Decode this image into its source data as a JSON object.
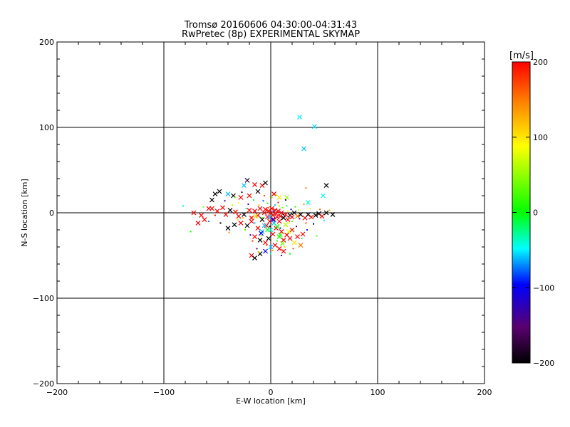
{
  "chart_data": {
    "type": "scatter",
    "title": "Tromsø 20160606 04:30:00-04:31:43",
    "subtitle": "RwPretec (8p) EXPERIMENTAL SKYMAP",
    "xlabel": "E-W location [km]",
    "ylabel": "N-S location [km]",
    "xlim": [
      -200,
      200
    ],
    "ylim": [
      -200,
      200
    ],
    "xticks": [
      -200,
      -100,
      0,
      100,
      200
    ],
    "yticks": [
      -200,
      -100,
      0,
      100,
      200
    ],
    "grid": true,
    "colorbar": {
      "label": "[m/s]",
      "range": [
        -200,
        200
      ],
      "ticks": [
        200,
        100,
        0,
        -100,
        -200
      ],
      "colormap": "rainbow: black-purple-blue-cyan-green-yellow-orange-red"
    },
    "points": [
      [
        27,
        112,
        -50,
        "x"
      ],
      [
        41,
        101,
        -55,
        "x"
      ],
      [
        31,
        75,
        -60,
        "x"
      ],
      [
        52,
        32,
        -200,
        "x"
      ],
      [
        49,
        20,
        -50,
        "x"
      ],
      [
        35,
        12,
        -40,
        "x"
      ],
      [
        33,
        29,
        150,
        "p"
      ],
      [
        -22,
        38,
        -180,
        "x"
      ],
      [
        -25,
        32,
        -60,
        "x"
      ],
      [
        -15,
        33,
        200,
        "x"
      ],
      [
        -8,
        32,
        200,
        "x"
      ],
      [
        -5,
        35,
        -200,
        "x"
      ],
      [
        -48,
        25,
        -200,
        "x"
      ],
      [
        -52,
        22,
        -200,
        "x"
      ],
      [
        -55,
        15,
        -200,
        "x"
      ],
      [
        -40,
        22,
        -60,
        "x"
      ],
      [
        -35,
        20,
        -200,
        "x"
      ],
      [
        -28,
        18,
        200,
        "x"
      ],
      [
        -20,
        20,
        200,
        "x"
      ],
      [
        -12,
        25,
        -200,
        "x"
      ],
      [
        3,
        22,
        200,
        "x"
      ],
      [
        8,
        18,
        100,
        "x"
      ],
      [
        15,
        18,
        50,
        "x"
      ],
      [
        -58,
        5,
        200,
        "x"
      ],
      [
        -72,
        0,
        200,
        "x"
      ],
      [
        -65,
        -3,
        200,
        "x"
      ],
      [
        -55,
        5,
        200,
        "x"
      ],
      [
        -50,
        2,
        200,
        "x"
      ],
      [
        -45,
        6,
        200,
        "x"
      ],
      [
        -42,
        -2,
        200,
        "x"
      ],
      [
        -38,
        3,
        -200,
        "x"
      ],
      [
        -33,
        1,
        200,
        "x"
      ],
      [
        -30,
        -4,
        200,
        "x"
      ],
      [
        -25,
        -2,
        -200,
        "x"
      ],
      [
        -20,
        3,
        200,
        "x"
      ],
      [
        -18,
        -6,
        200,
        "x"
      ],
      [
        -15,
        2,
        200,
        "x"
      ],
      [
        -12,
        -3,
        200,
        "x"
      ],
      [
        -10,
        5,
        200,
        "x"
      ],
      [
        -8,
        -8,
        -200,
        "x"
      ],
      [
        -6,
        0,
        200,
        "x"
      ],
      [
        -5,
        4,
        200,
        "x"
      ],
      [
        -3,
        -5,
        200,
        "x"
      ],
      [
        -2,
        2,
        200,
        "x"
      ],
      [
        -1,
        -10,
        200,
        "x"
      ],
      [
        0,
        0,
        200,
        "x"
      ],
      [
        1,
        5,
        200,
        "x"
      ],
      [
        2,
        -3,
        200,
        "x"
      ],
      [
        3,
        -8,
        200,
        "x"
      ],
      [
        4,
        3,
        200,
        "x"
      ],
      [
        5,
        -1,
        200,
        "x"
      ],
      [
        6,
        -5,
        200,
        "x"
      ],
      [
        7,
        2,
        200,
        "x"
      ],
      [
        8,
        -10,
        200,
        "x"
      ],
      [
        9,
        -4,
        200,
        "x"
      ],
      [
        10,
        0,
        200,
        "x"
      ],
      [
        12,
        -6,
        -200,
        "x"
      ],
      [
        14,
        -2,
        200,
        "x"
      ],
      [
        16,
        -8,
        200,
        "x"
      ],
      [
        18,
        -3,
        -200,
        "x"
      ],
      [
        20,
        -5,
        200,
        "x"
      ],
      [
        22,
        0,
        -200,
        "x"
      ],
      [
        25,
        -4,
        150,
        "x"
      ],
      [
        28,
        -2,
        -200,
        "x"
      ],
      [
        32,
        -6,
        200,
        "x"
      ],
      [
        35,
        -2,
        -200,
        "x"
      ],
      [
        38,
        -5,
        200,
        "x"
      ],
      [
        42,
        -3,
        -200,
        "x"
      ],
      [
        45,
        -1,
        -200,
        "x"
      ],
      [
        48,
        -4,
        200,
        "x"
      ],
      [
        52,
        0,
        -200,
        "x"
      ],
      [
        58,
        -2,
        -200,
        "x"
      ],
      [
        -68,
        -12,
        200,
        "x"
      ],
      [
        -62,
        -8,
        200,
        "x"
      ],
      [
        -40,
        -18,
        -200,
        "x"
      ],
      [
        -34,
        -14,
        -200,
        "x"
      ],
      [
        -28,
        -12,
        200,
        "x"
      ],
      [
        -22,
        -15,
        -200,
        "x"
      ],
      [
        -18,
        -10,
        200,
        "x"
      ],
      [
        -12,
        -18,
        200,
        "x"
      ],
      [
        -8,
        -22,
        -60,
        "x"
      ],
      [
        -4,
        -15,
        200,
        "x"
      ],
      [
        0,
        -20,
        -50,
        "x"
      ],
      [
        2,
        -25,
        200,
        "x"
      ],
      [
        5,
        -18,
        200,
        "x"
      ],
      [
        8,
        -28,
        0,
        "x"
      ],
      [
        10,
        -22,
        200,
        "x"
      ],
      [
        12,
        -32,
        200,
        "x"
      ],
      [
        15,
        -26,
        200,
        "x"
      ],
      [
        18,
        -30,
        200,
        "x"
      ],
      [
        20,
        -20,
        200,
        "x"
      ],
      [
        22,
        -35,
        100,
        "x"
      ],
      [
        25,
        -28,
        200,
        "x"
      ],
      [
        28,
        -38,
        150,
        "x"
      ],
      [
        30,
        -25,
        200,
        "x"
      ],
      [
        -15,
        -28,
        200,
        "x"
      ],
      [
        -10,
        -32,
        -200,
        "x"
      ],
      [
        -5,
        -35,
        200,
        "x"
      ],
      [
        -2,
        -30,
        -200,
        "x"
      ],
      [
        4,
        -38,
        200,
        "x"
      ],
      [
        8,
        -42,
        200,
        "x"
      ],
      [
        12,
        -45,
        200,
        "x"
      ],
      [
        -18,
        -50,
        200,
        "x"
      ],
      [
        -15,
        -53,
        -200,
        "x"
      ],
      [
        -10,
        -48,
        -200,
        "x"
      ],
      [
        -5,
        -45,
        -100,
        "x"
      ],
      [
        0,
        -40,
        -60,
        "x"
      ],
      [
        -6,
        -15,
        -60,
        "x"
      ],
      [
        -1,
        -5,
        -60,
        "x"
      ],
      [
        3,
        -12,
        -60,
        "x"
      ],
      [
        -3,
        -20,
        0,
        "x"
      ],
      [
        6,
        -16,
        0,
        "x"
      ],
      [
        9,
        -26,
        20,
        "x"
      ],
      [
        14,
        -14,
        60,
        "x"
      ],
      [
        -9,
        -24,
        -100,
        "x"
      ],
      [
        2,
        -8,
        -100,
        "x"
      ],
      [
        11,
        -36,
        40,
        "x"
      ],
      [
        17,
        -22,
        80,
        "x"
      ],
      [
        -14,
        -4,
        100,
        "x"
      ],
      [
        -82,
        8,
        -40,
        "p"
      ],
      [
        -75,
        -22,
        0,
        "p"
      ],
      [
        -63,
        7,
        40,
        "p"
      ],
      [
        -47,
        -12,
        -200,
        "p"
      ],
      [
        -43,
        14,
        -140,
        "p"
      ],
      [
        -36,
        9,
        60,
        "p"
      ],
      [
        -31,
        -8,
        100,
        "p"
      ],
      [
        -27,
        24,
        -180,
        "p"
      ],
      [
        -24,
        -20,
        30,
        "p"
      ],
      [
        -21,
        10,
        -120,
        "p"
      ],
      [
        -17,
        -33,
        180,
        "p"
      ],
      [
        -16,
        15,
        -20,
        "p"
      ],
      [
        -13,
        -42,
        -160,
        "p"
      ],
      [
        -11,
        9,
        120,
        "p"
      ],
      [
        -9,
        -27,
        50,
        "p"
      ],
      [
        -7,
        14,
        -80,
        "p"
      ],
      [
        -4,
        -38,
        160,
        "p"
      ],
      [
        -3,
        11,
        0,
        "p"
      ],
      [
        -1,
        -16,
        -200,
        "p"
      ],
      [
        1,
        18,
        70,
        "p"
      ],
      [
        2,
        -44,
        130,
        "p"
      ],
      [
        4,
        9,
        -60,
        "p"
      ],
      [
        6,
        -33,
        20,
        "p"
      ],
      [
        7,
        12,
        190,
        "p"
      ],
      [
        9,
        -18,
        -140,
        "p"
      ],
      [
        11,
        6,
        40,
        "p"
      ],
      [
        13,
        -40,
        110,
        "p"
      ],
      [
        15,
        8,
        -30,
        "p"
      ],
      [
        17,
        -12,
        90,
        "p"
      ],
      [
        19,
        4,
        -100,
        "p"
      ],
      [
        21,
        -42,
        170,
        "p"
      ],
      [
        23,
        7,
        10,
        "p"
      ],
      [
        24,
        -16,
        -170,
        "p"
      ],
      [
        26,
        3,
        60,
        "p"
      ],
      [
        29,
        -30,
        -20,
        "p"
      ],
      [
        31,
        10,
        140,
        "p"
      ],
      [
        34,
        -20,
        -90,
        "p"
      ],
      [
        37,
        5,
        80,
        "p"
      ],
      [
        40,
        -13,
        -200,
        "p"
      ],
      [
        43,
        -27,
        30,
        "p"
      ],
      [
        46,
        4,
        160,
        "p"
      ],
      [
        50,
        -9,
        -50,
        "p"
      ],
      [
        55,
        3,
        120,
        "p"
      ],
      [
        -52,
        -3,
        190,
        "p"
      ],
      [
        -58,
        -10,
        -70,
        "p"
      ],
      [
        -39,
        -23,
        140,
        "p"
      ],
      [
        -33,
        18,
        50,
        "p"
      ],
      [
        -19,
        -26,
        -110,
        "p"
      ],
      [
        -11,
        -46,
        90,
        "p"
      ],
      [
        -6,
        20,
        170,
        "p"
      ],
      [
        0,
        -48,
        -40,
        "p"
      ],
      [
        5,
        21,
        110,
        "p"
      ],
      [
        10,
        -50,
        -130,
        "p"
      ],
      [
        14,
        15,
        -170,
        "p"
      ],
      [
        18,
        -48,
        0,
        "p"
      ],
      [
        -26,
        -6,
        120,
        "p"
      ],
      [
        -15,
        -12,
        -60,
        "p"
      ],
      [
        -8,
        -6,
        20,
        "p"
      ],
      [
        -2,
        6,
        150,
        "p"
      ],
      [
        3,
        2,
        -90,
        "p"
      ],
      [
        8,
        8,
        60,
        "p"
      ],
      [
        12,
        -2,
        -190,
        "p"
      ],
      [
        16,
        2,
        100,
        "p"
      ],
      [
        20,
        -10,
        30,
        "p"
      ],
      [
        27,
        -7,
        -140,
        "p"
      ],
      [
        33,
        -12,
        170,
        "p"
      ],
      [
        -23,
        5,
        -30,
        "p"
      ],
      [
        -30,
        12,
        90,
        "p"
      ]
    ]
  }
}
